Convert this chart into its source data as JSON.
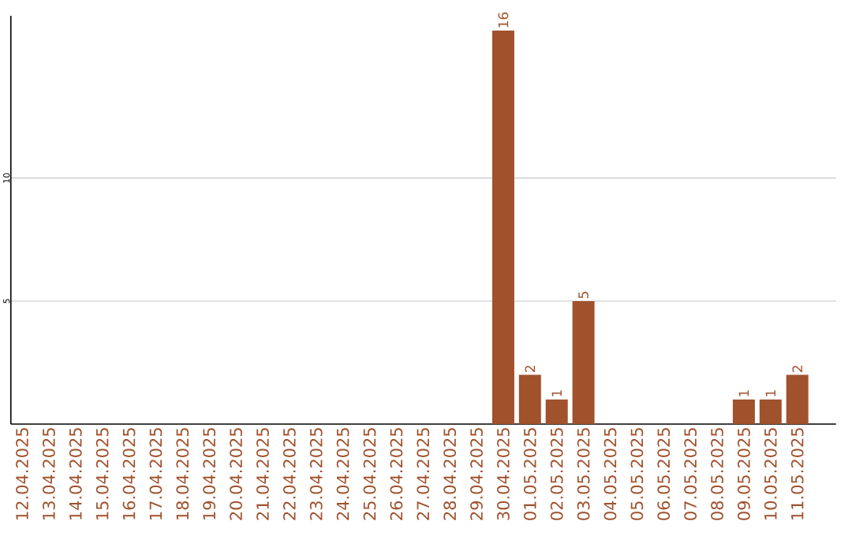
{
  "chart_data": {
    "type": "bar",
    "categories": [
      "12.04.2025",
      "13.04.2025",
      "14.04.2025",
      "15.04.2025",
      "16.04.2025",
      "17.04.2025",
      "18.04.2025",
      "19.04.2025",
      "20.04.2025",
      "21.04.2025",
      "22.04.2025",
      "23.04.2025",
      "24.04.2025",
      "25.04.2025",
      "26.04.2025",
      "27.04.2025",
      "28.04.2025",
      "29.04.2025",
      "30.04.2025",
      "01.05.2025",
      "02.05.2025",
      "03.05.2025",
      "04.05.2025",
      "05.05.2025",
      "06.05.2025",
      "07.05.2025",
      "08.05.2025",
      "09.05.2025",
      "10.05.2025",
      "11.05.2025"
    ],
    "values": [
      0,
      0,
      0,
      0,
      0,
      0,
      0,
      0,
      0,
      0,
      0,
      0,
      0,
      0,
      0,
      0,
      0,
      0,
      16,
      2,
      1,
      5,
      0,
      0,
      0,
      0,
      0,
      1,
      1,
      2
    ],
    "value_labels": [
      null,
      null,
      null,
      null,
      null,
      null,
      null,
      null,
      null,
      null,
      null,
      null,
      null,
      null,
      null,
      null,
      null,
      null,
      "16",
      "2",
      "1",
      "5",
      null,
      null,
      null,
      null,
      null,
      "1",
      "1",
      "2"
    ],
    "color": "#a0522d",
    "ylim": [
      0,
      16.6
    ],
    "yticks": [
      5,
      10
    ],
    "grid": "y"
  }
}
